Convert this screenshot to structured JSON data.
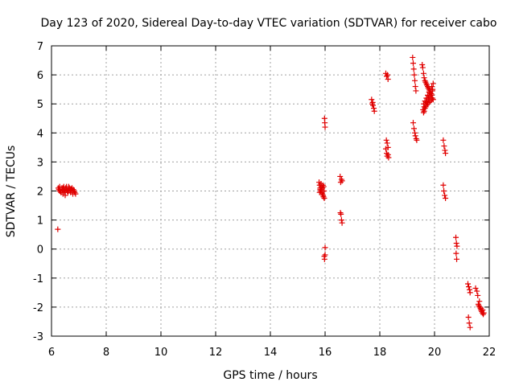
{
  "chart_data": {
    "type": "scatter",
    "title": "Day 123 of 2020, Sidereal Day-to-day VTEC variation (SDTVAR) for receiver cabo",
    "xlabel": "GPS time / hours",
    "ylabel": "SDTVAR / TECUs",
    "xlim": [
      6,
      22
    ],
    "ylim": [
      -3,
      7
    ],
    "xticks": [
      "6",
      "8",
      "10",
      "12",
      "14",
      "16",
      "18",
      "20",
      "22"
    ],
    "yticks": [
      "-3",
      "-2",
      "-1",
      "0",
      "1",
      "2",
      "3",
      "4",
      "5",
      "6",
      "7"
    ],
    "grid": true,
    "marker": "+",
    "color": "#e00000",
    "series": [
      {
        "name": "SDTVAR",
        "x": [
          6.23,
          6.25,
          6.27,
          6.3,
          6.32,
          6.35,
          6.38,
          6.4,
          6.42,
          6.45,
          6.48,
          6.5,
          6.52,
          6.55,
          6.58,
          6.6,
          6.63,
          6.65,
          6.68,
          6.7,
          6.72,
          6.75,
          6.78,
          6.8,
          6.83,
          6.85,
          6.88,
          6.3,
          6.35,
          6.42,
          6.47,
          6.55,
          6.62,
          6.7,
          6.77,
          6.45,
          6.5,
          6.58,
          6.65,
          15.78,
          15.8,
          15.82,
          15.84,
          15.86,
          15.88,
          15.9,
          15.92,
          15.94,
          15.96,
          15.8,
          15.85,
          15.9,
          15.93,
          15.82,
          15.88,
          15.95,
          15.97,
          15.98,
          15.99,
          16.0,
          16.0,
          15.97,
          15.98,
          16.0,
          16.55,
          16.57,
          16.6,
          16.62,
          16.56,
          16.58,
          16.6,
          16.62,
          17.7,
          17.72,
          17.75,
          17.78,
          17.8,
          17.74,
          18.22,
          18.25,
          18.28,
          18.3,
          18.24,
          18.27,
          18.3,
          18.22,
          18.25,
          18.3,
          18.32,
          18.27,
          19.2,
          19.22,
          19.24,
          19.26,
          19.28,
          19.3,
          19.32,
          19.22,
          19.25,
          19.28,
          19.3,
          19.33,
          19.35,
          19.55,
          19.57,
          19.6,
          19.62,
          19.65,
          19.67,
          19.7,
          19.72,
          19.75,
          19.77,
          19.8,
          19.82,
          19.85,
          19.87,
          19.9,
          19.92,
          19.95,
          19.6,
          19.65,
          19.7,
          19.75,
          19.8,
          19.85,
          19.9,
          19.58,
          19.62,
          19.68,
          19.73,
          19.78,
          19.83,
          19.88,
          19.93,
          19.6,
          19.65,
          19.7,
          19.75,
          19.8,
          19.85,
          19.9,
          19.95,
          19.62,
          19.68,
          19.72,
          19.78,
          19.82,
          19.88,
          19.92,
          20.32,
          20.35,
          20.38,
          20.4,
          20.32,
          20.34,
          20.37,
          20.4,
          20.78,
          20.8,
          20.82,
          20.79,
          20.81,
          21.22,
          21.25,
          21.28,
          21.3,
          21.24,
          21.27,
          21.3,
          21.5,
          21.55,
          21.6,
          21.62,
          21.65,
          21.68,
          21.7,
          21.72,
          21.75,
          21.78,
          21.8,
          21.58,
          21.64,
          21.7,
          21.76
        ],
        "y": [
          0.68,
          2.1,
          2.05,
          2.15,
          2.0,
          1.95,
          2.1,
          2.05,
          1.9,
          2.15,
          2.0,
          1.85,
          2.1,
          2.05,
          2.0,
          1.95,
          2.15,
          2.1,
          2.0,
          1.95,
          2.05,
          2.1,
          1.9,
          2.05,
          2.0,
          1.95,
          1.9,
          2.0,
          1.95,
          2.1,
          2.05,
          2.15,
          2.0,
          2.05,
          2.0,
          2.05,
          1.95,
          2.0,
          2.1,
          2.3,
          2.2,
          2.1,
          2.0,
          2.15,
          2.05,
          1.9,
          2.2,
          1.8,
          2.0,
          1.95,
          2.25,
          2.1,
          1.85,
          2.05,
          1.95,
          2.15,
          1.75,
          4.5,
          4.35,
          4.2,
          0.05,
          -0.25,
          -0.35,
          -0.2,
          2.5,
          2.3,
          2.4,
          2.35,
          1.25,
          1.2,
          1.0,
          0.9,
          5.15,
          5.0,
          4.95,
          4.85,
          4.75,
          5.05,
          6.05,
          5.95,
          6.0,
          5.85,
          3.75,
          3.65,
          3.5,
          3.45,
          3.3,
          3.25,
          3.15,
          3.2,
          6.6,
          6.4,
          6.2,
          6.0,
          5.8,
          5.6,
          5.45,
          4.35,
          4.15,
          4.0,
          3.9,
          3.8,
          3.75,
          6.35,
          6.25,
          6.05,
          5.9,
          5.8,
          5.75,
          5.7,
          5.65,
          5.6,
          5.55,
          5.5,
          5.45,
          5.4,
          5.35,
          5.3,
          5.2,
          5.15,
          4.7,
          4.85,
          4.95,
          5.0,
          5.05,
          5.1,
          5.15,
          4.8,
          4.9,
          5.0,
          5.1,
          5.2,
          5.25,
          5.3,
          5.5,
          5.0,
          5.1,
          5.2,
          5.3,
          5.4,
          5.5,
          5.6,
          5.7,
          4.75,
          4.9,
          5.05,
          5.15,
          5.25,
          5.35,
          5.45,
          3.75,
          3.55,
          3.4,
          3.3,
          2.2,
          2.0,
          1.85,
          1.75,
          0.4,
          0.2,
          0.1,
          -0.15,
          -0.35,
          -1.2,
          -1.3,
          -1.4,
          -1.5,
          -2.35,
          -2.55,
          -2.7,
          -1.35,
          -1.45,
          -1.9,
          -1.95,
          -2.0,
          -2.05,
          -2.1,
          -2.15,
          -2.2,
          -2.25,
          -2.2,
          -1.6,
          -1.8,
          -2.05,
          -2.1
        ]
      }
    ]
  }
}
